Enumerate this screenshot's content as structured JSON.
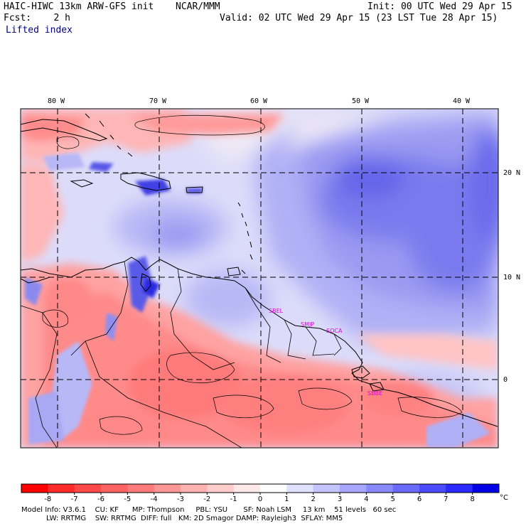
{
  "header": {
    "model": "HAIC-HIWC 13km ARW-GFS init",
    "org": "NCAR/MMM",
    "init": "Init: 00 UTC Wed 29 Apr 15",
    "fcst": "Fcst:    2 h",
    "valid": "Valid: 02 UTC Wed 29 Apr 15 (23 LST Tue 28 Apr 15)",
    "field": "Lifted index"
  },
  "map": {
    "lon_labels": [
      "80 W",
      "70 W",
      "60 W",
      "50 W",
      "40 W"
    ],
    "lat_labels": [
      "20 N",
      "10 N",
      "0"
    ],
    "stations": [
      "SBEL",
      "SMJP",
      "SOCA",
      "SBBE"
    ]
  },
  "colorbar": {
    "labels": [
      "-8",
      "-7",
      "-6",
      "-5",
      "-4",
      "-3",
      "-2",
      "-1",
      "0",
      "1",
      "2",
      "3",
      "4",
      "5",
      "6",
      "7",
      "8"
    ],
    "unit": "°C",
    "colors": [
      "#ff0000",
      "#ff2a2a",
      "#ff4848",
      "#ff6262",
      "#ff7b7b",
      "#ff9696",
      "#ffb0b0",
      "#ffcccc",
      "#ffe8e8",
      "#ffffff",
      "#e0e0ff",
      "#c4c4ff",
      "#a6a6ff",
      "#8888ff",
      "#6a6aff",
      "#4a4aff",
      "#2a2aff",
      "#0000e6"
    ]
  },
  "footer": {
    "line1": "Model Info: V3.6.1    CU: KF      MP: Thompson     PBL: YSU       SF: Noah LSM     13 km    51 levels   60 sec",
    "line2": "           LW: RRTMG    SW: RRTMG  DIFF: full   KM: 2D Smagor DAMP: Rayleigh3  SFLAY: MM5"
  }
}
